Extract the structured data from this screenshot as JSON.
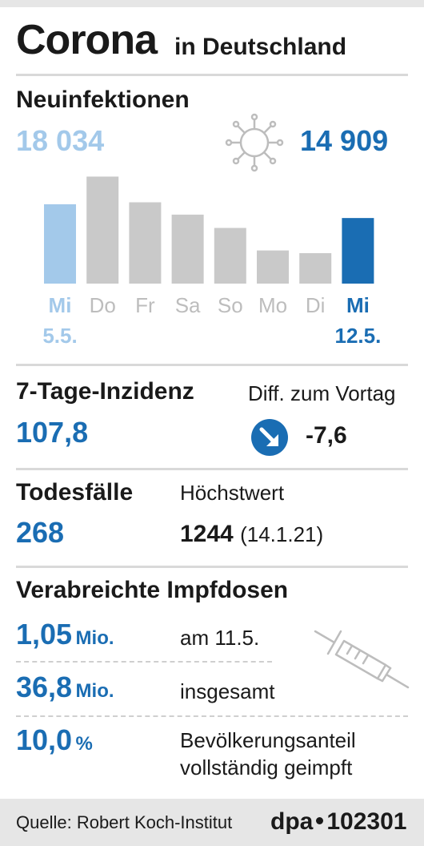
{
  "header": {
    "title": "Corona",
    "subtitle": "in Deutschland"
  },
  "new_infections": {
    "heading": "Neuinfektionen",
    "first_value": "18 034",
    "last_value": "14 909",
    "icon": "virus-icon"
  },
  "chart_data": {
    "type": "bar",
    "categories": [
      "Mi",
      "Do",
      "Fr",
      "Sa",
      "So",
      "Mo",
      "Di",
      "Mi"
    ],
    "first_date": "5.5.",
    "last_date": "12.5.",
    "values": [
      18034,
      24329,
      18485,
      15685,
      12656,
      7534,
      6922,
      14909
    ],
    "colors": [
      "#a3c9ea",
      "#c9c9c9",
      "#c9c9c9",
      "#c9c9c9",
      "#c9c9c9",
      "#c9c9c9",
      "#c9c9c9",
      "#1a6db3"
    ],
    "label_colors": [
      "#a3c9ea",
      "#bdbdbd",
      "#bdbdbd",
      "#bdbdbd",
      "#bdbdbd",
      "#bdbdbd",
      "#bdbdbd",
      "#1a6db3"
    ],
    "ylim": [
      0,
      25500
    ]
  },
  "incidence": {
    "heading": "7-Tage-Inzidenz",
    "value": "107,8",
    "diff_label": "Diff. zum Vortag",
    "diff_value": "-7,6",
    "icon": "arrow-down-right-icon"
  },
  "deaths": {
    "heading": "Todesfälle",
    "value": "268",
    "max_label": "Höchstwert",
    "max_value": "1244",
    "max_date": "(14.1.21)"
  },
  "vaccinations": {
    "heading": "Verabreichte Impfdosen",
    "icon": "syringe-icon",
    "rows": [
      {
        "value": "1,05",
        "unit": "Mio.",
        "label": "am 11.5."
      },
      {
        "value": "36,8",
        "unit": "Mio.",
        "label": "insgesamt"
      },
      {
        "value": "10,0",
        "unit": "%",
        "label": "Bevölkerungsanteil",
        "label2": "vollständig geimpft"
      }
    ]
  },
  "footer": {
    "source": "Quelle: Robert Koch-Institut",
    "brand": "dpa",
    "number": "102301"
  },
  "colors": {
    "accent": "#1a6db3",
    "accent_light": "#a3c9ea",
    "bar_grey": "#c9c9c9",
    "rule": "#d9d9d9"
  }
}
